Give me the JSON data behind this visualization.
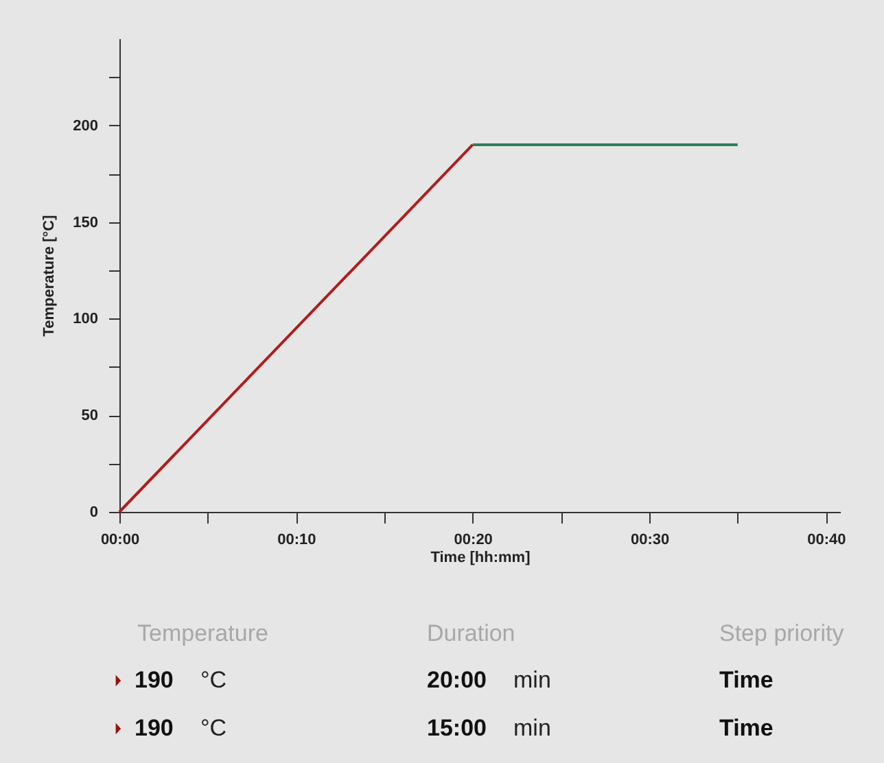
{
  "chart_data": {
    "type": "line",
    "xlabel": "Time [hh:mm]",
    "ylabel": "Temperature [°C]",
    "series": [
      {
        "color": "#b01c1c",
        "x": [
          0,
          20
        ],
        "values": [
          0,
          190
        ]
      },
      {
        "color": "#2e7d5b",
        "x": [
          20,
          35
        ],
        "values": [
          190,
          190
        ]
      }
    ],
    "xlim": [
      0,
      40.8
    ],
    "ylim": [
      0,
      245
    ],
    "xticks": [
      {
        "value": 0,
        "label": "00:00"
      },
      {
        "value": 5,
        "label": null
      },
      {
        "value": 10,
        "label": "00:10"
      },
      {
        "value": 15,
        "label": null
      },
      {
        "value": 20,
        "label": "00:20"
      },
      {
        "value": 25,
        "label": null
      },
      {
        "value": 30,
        "label": "00:30"
      },
      {
        "value": 35,
        "label": null
      },
      {
        "value": 40,
        "label": "00:40"
      }
    ],
    "yticks": [
      0,
      {
        "value": 25,
        "label": null
      },
      50,
      {
        "value": 75,
        "label": null
      },
      100,
      {
        "value": 125,
        "label": null
      },
      150,
      {
        "value": 175,
        "label": null
      },
      200,
      {
        "value": 225,
        "label": null
      }
    ],
    "grid": false,
    "legend": false,
    "line_style": "solid",
    "marker": "none",
    "annotations": [
      "Temperature",
      "Duration",
      "Step priority",
      "190",
      "°C",
      "20:00",
      "min",
      "Time",
      "190",
      "°C",
      "15:00",
      "min",
      "Time"
    ]
  }
}
